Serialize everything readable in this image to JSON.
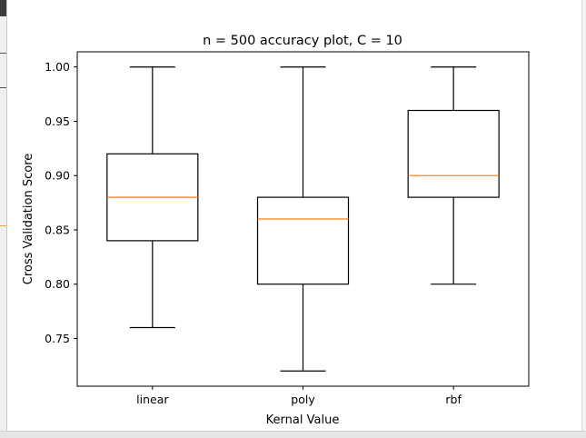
{
  "chart_data": {
    "type": "boxplot",
    "title": "n = 500 accuracy plot, C = 10",
    "xlabel": "Kernal Value",
    "ylabel": "Cross Validation Score",
    "categories": [
      "linear",
      "poly",
      "rbf"
    ],
    "boxes": [
      {
        "whislo": 0.76,
        "q1": 0.84,
        "med": 0.88,
        "q3": 0.92,
        "whishi": 1.0
      },
      {
        "whislo": 0.72,
        "q1": 0.8,
        "med": 0.86,
        "q3": 0.88,
        "whishi": 1.0
      },
      {
        "whislo": 0.8,
        "q1": 0.88,
        "med": 0.9,
        "q3": 0.96,
        "whishi": 1.0
      }
    ],
    "ylim": [
      0.706,
      1.014
    ],
    "yticks": [
      0.75,
      0.8,
      0.85,
      0.9,
      0.95,
      1.0
    ],
    "ytick_labels": [
      "0.75",
      "0.80",
      "0.85",
      "0.90",
      "0.95",
      "1.00"
    ],
    "grid": false,
    "median_color": "#ff7f0e",
    "box_color": "#000000"
  }
}
